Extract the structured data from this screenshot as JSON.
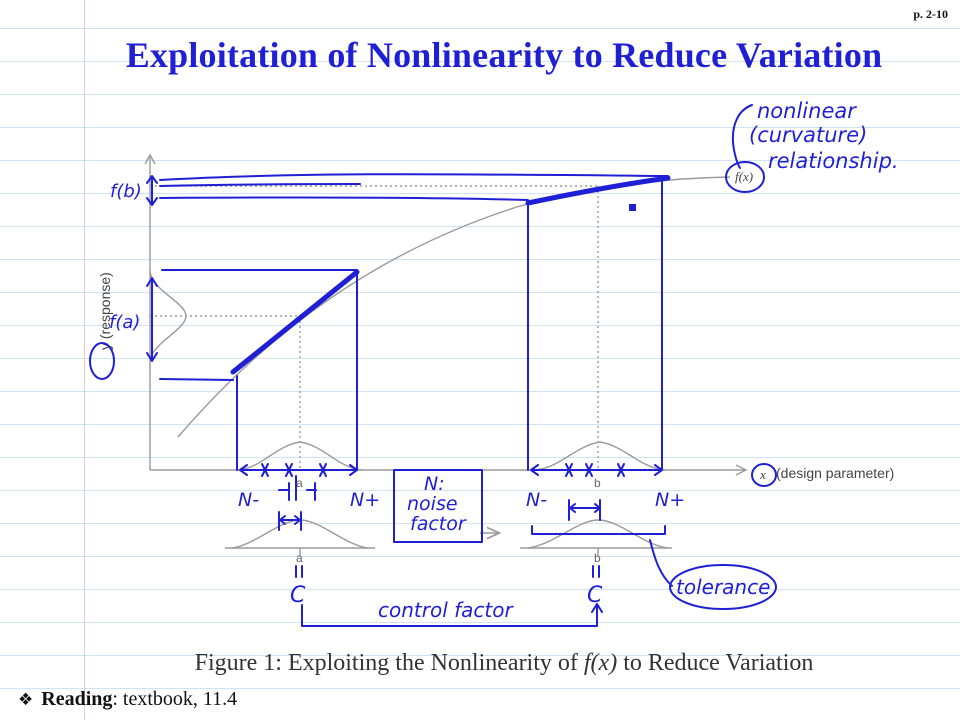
{
  "page_number": "p. 2-10",
  "title": "Exploitation of Nonlinearity to Reduce Variation",
  "figure": {
    "y_axis_label": "y (response)",
    "y_axis_symbol": "y",
    "x_axis_symbol": "x",
    "x_axis_label": "(design parameter)",
    "curve_label": "f(x)",
    "point_a": "a",
    "point_b": "b",
    "colors": {
      "ink": "#1f1fd6",
      "figure": "#9a9a9a"
    }
  },
  "annotations": {
    "nonlinear_line1": "nonlinear",
    "nonlinear_line2": "(curvature)",
    "nonlinear_line3": "relationship.",
    "fb": "f(b)",
    "fa": "f(a)",
    "n_minus": "N-",
    "n_plus": "N+",
    "noise_line1": "N:",
    "noise_line2": "noise",
    "noise_line3": "factor",
    "c": "C",
    "tolerance": "tolerance",
    "control_factor": "control factor"
  },
  "caption": {
    "prefix": "Figure 1: Exploiting the Nonlinearity of ",
    "math": "f(x)",
    "suffix": " to Reduce Variation"
  },
  "reading": {
    "label": "Reading",
    "text": ": textbook, 11.4"
  }
}
